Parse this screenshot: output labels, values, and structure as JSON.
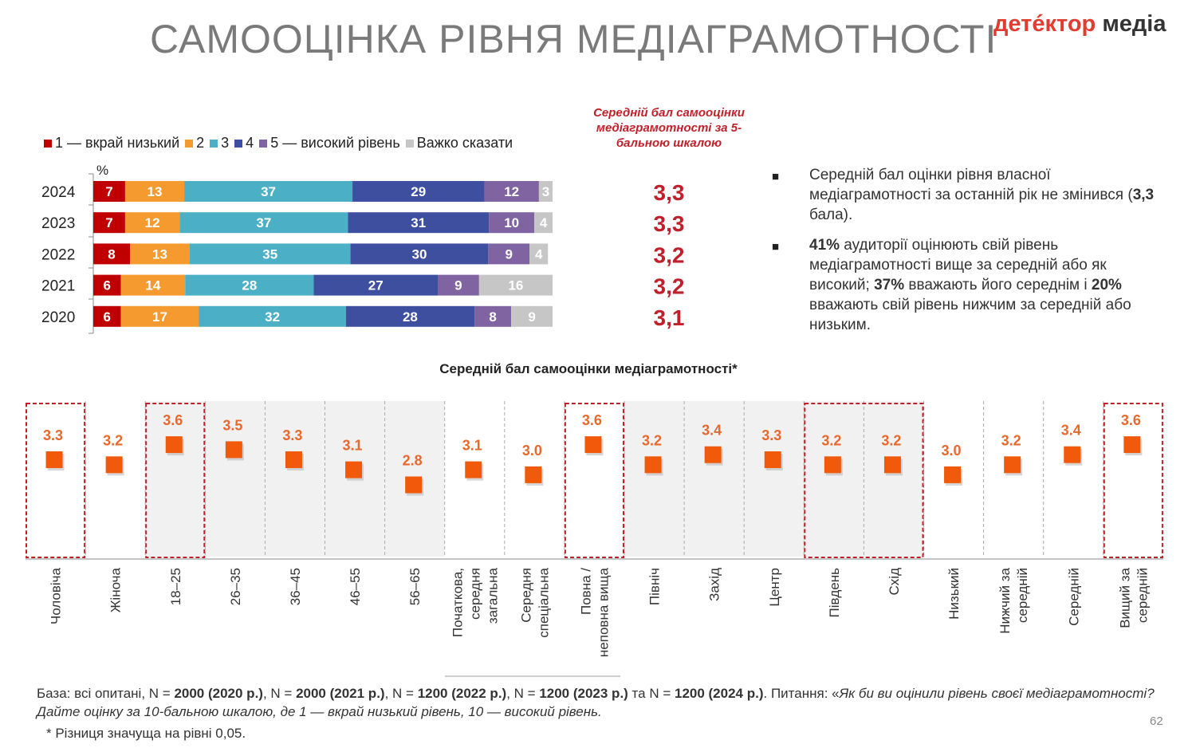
{
  "title": "САМООЦІНКА РІВНЯ МЕДІАГРАМОТНОСТІ",
  "logo": {
    "part1": "детéктор",
    "part2": "медіа"
  },
  "colors": {
    "c1": "#c00000",
    "c2": "#f59a2e",
    "c3": "#4bb0c6",
    "c4": "#3f4fa0",
    "c5": "#8064a2",
    "c6": "#c6c6c6",
    "avg_text": "#c0202a",
    "point": "#f05a0a",
    "point_label": "#e8692d",
    "highlight": "#c0202a",
    "band": "#f1f1f1"
  },
  "legend": [
    "1 — вкрай низький",
    "2",
    "3",
    "4",
    "5 — високий рівень",
    "Важко сказати"
  ],
  "pct_label": "%",
  "avg_title": "Середній бал самооцінки медіаграмотності за 5-бальною шкалою",
  "bullets": [
    {
      "parts": [
        {
          "t": "Середній бал оцінки рівня власної медіаграмотності за останній рік не змінився (",
          "b": false
        },
        {
          "t": "3,3",
          "b": true
        },
        {
          "t": " бала).",
          "b": false
        }
      ]
    },
    {
      "parts": [
        {
          "t": "41%",
          "b": true
        },
        {
          "t": " аудиторії оцінюють свій рівень медіаграмотності вище за середній або як високий; ",
          "b": false
        },
        {
          "t": "37%",
          "b": true
        },
        {
          "t": " вважають його середнім і ",
          "b": false
        },
        {
          "t": "20%",
          "b": true
        },
        {
          "t": " вважають свій рівень нижчим за середній або низьким.",
          "b": false
        }
      ]
    }
  ],
  "sub_title": "Середній бал самооцінки медіаграмотності*",
  "chart_data": [
    {
      "type": "bar",
      "stacked": true,
      "orientation": "horizontal",
      "unit": "%",
      "categories": [
        "2024",
        "2023",
        "2022",
        "2021",
        "2020"
      ],
      "series": [
        {
          "name": "1 — вкрай низький",
          "values": [
            7,
            7,
            8,
            6,
            6
          ]
        },
        {
          "name": "2",
          "values": [
            13,
            12,
            13,
            14,
            17
          ]
        },
        {
          "name": "3",
          "values": [
            37,
            37,
            35,
            28,
            32
          ]
        },
        {
          "name": "4",
          "values": [
            29,
            31,
            30,
            27,
            28
          ]
        },
        {
          "name": "5 — високий рівень",
          "values": [
            12,
            10,
            9,
            9,
            8
          ]
        },
        {
          "name": "Важко сказати",
          "values": [
            3,
            4,
            4,
            16,
            9
          ]
        }
      ],
      "averages": [
        "3,3",
        "3,3",
        "3,2",
        "3,2",
        "3,1"
      ]
    },
    {
      "type": "scatter",
      "categories": [
        "Чоловіча",
        "Жіноча",
        "18–25",
        "26–35",
        "36–45",
        "46–55",
        "56–65",
        "Початкова, середня загальна",
        "Середня спеціальна",
        "Повна / неповна вища",
        "Північ",
        "Захід",
        "Центр",
        "Південь",
        "Схід",
        "Низький",
        "Нижчий за середній",
        "Середній",
        "Вищий за середній"
      ],
      "values": [
        3.3,
        3.2,
        3.6,
        3.5,
        3.3,
        3.1,
        2.8,
        3.1,
        3.0,
        3.6,
        3.2,
        3.4,
        3.3,
        3.2,
        3.2,
        3.0,
        3.2,
        3.4,
        3.6
      ],
      "labels": [
        "3.3",
        "3.2",
        "3.6",
        "3.5",
        "3.3",
        "3.1",
        "2.8",
        "3.1",
        "3.0",
        "3.6",
        "3.2",
        "3.4",
        "3.3",
        "3.2",
        "3.2",
        "3.0",
        "3.2",
        "3.4",
        "3.6"
      ],
      "highlighted": [
        0,
        2,
        9,
        13,
        14,
        18
      ],
      "shaded": [
        2,
        3,
        4,
        5,
        6,
        10,
        11,
        12,
        13,
        14
      ]
    }
  ],
  "footer": {
    "parts": [
      {
        "t": "База: всі опитані, N = ",
        "b": false,
        "i": false
      },
      {
        "t": "2000 (2020 р.)",
        "b": true,
        "i": false
      },
      {
        "t": ", N = ",
        "b": false,
        "i": false
      },
      {
        "t": "2000 (2021 р.)",
        "b": true,
        "i": false
      },
      {
        "t": ", N = ",
        "b": false,
        "i": false
      },
      {
        "t": "1200 (2022 р.)",
        "b": true,
        "i": false
      },
      {
        "t": ", N = ",
        "b": false,
        "i": false
      },
      {
        "t": "1200 (2023 р.)",
        "b": true,
        "i": false
      },
      {
        "t": " та N = ",
        "b": false,
        "i": false
      },
      {
        "t": "1200 (2024 р.)",
        "b": true,
        "i": false
      },
      {
        "t": ". Питання: «",
        "b": false,
        "i": false
      },
      {
        "t": "Як би ви оцінили рівень своєї медіаграмотності? Дайте оцінку за 10-бальною шкалою, де 1 — вкрай низький рівень, 10 — високий рівень.",
        "b": false,
        "i": true
      }
    ]
  },
  "footnote": "* Різниця значуща на рівні 0,05.",
  "page_number": "62"
}
